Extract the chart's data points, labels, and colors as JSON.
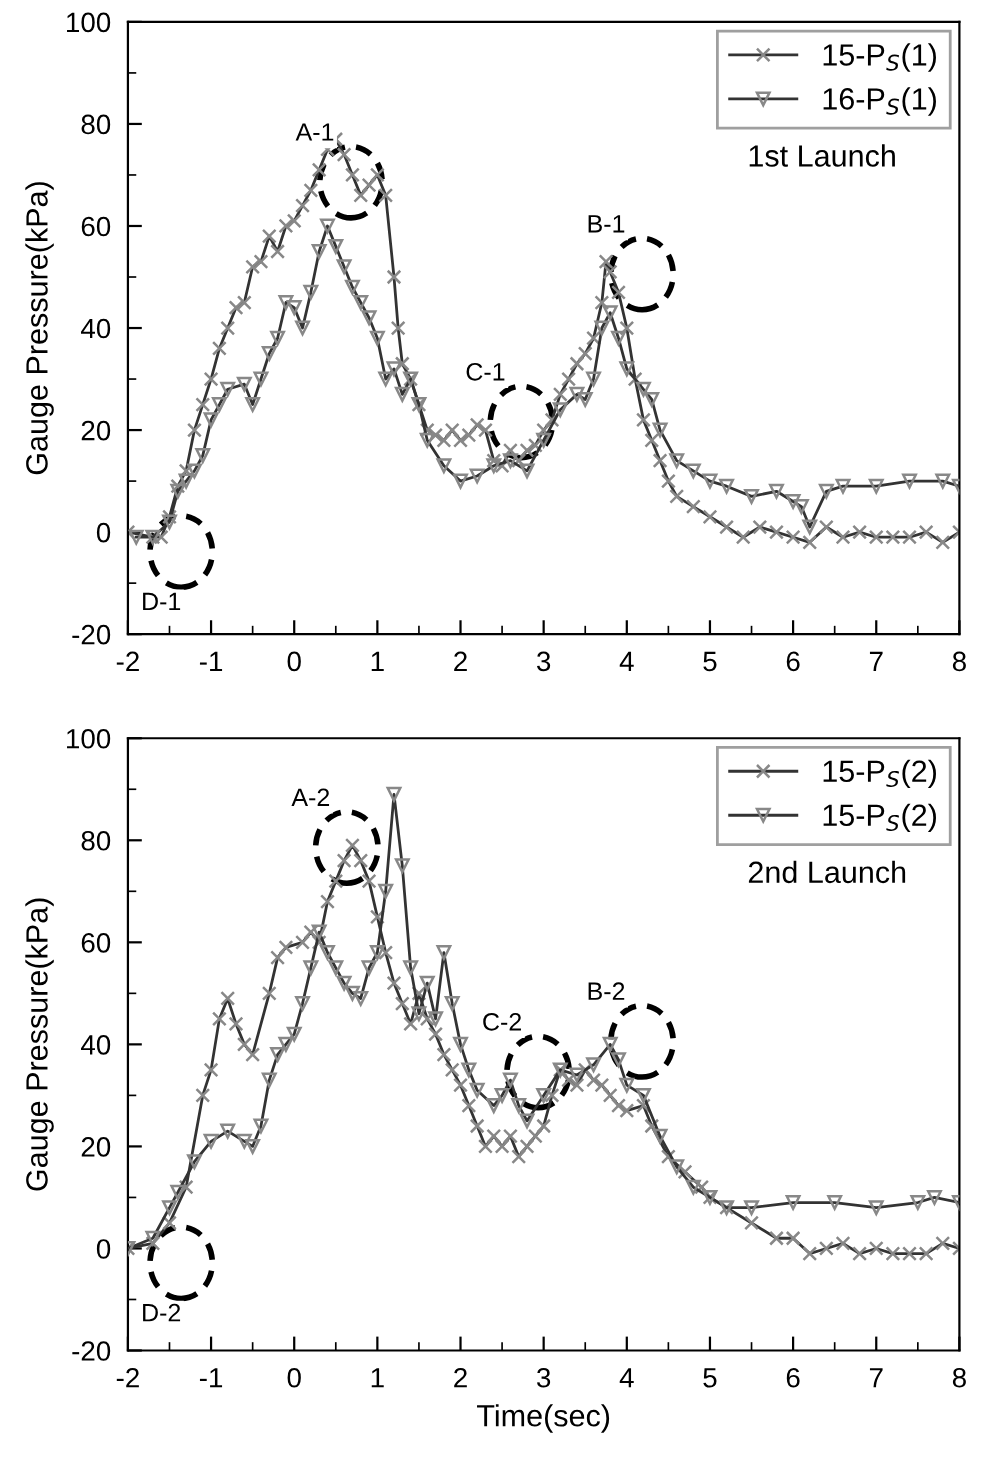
{
  "chart_data": [
    {
      "type": "line",
      "ylabel": "Gauge Pressure(kPa)",
      "xlim": [
        -2,
        8
      ],
      "xticks": [
        -2,
        -1,
        0,
        1,
        2,
        3,
        4,
        5,
        6,
        7,
        8
      ],
      "ylim": [
        -20,
        100
      ],
      "yticks": [
        -20,
        0,
        20,
        40,
        60,
        80,
        100
      ],
      "legend": "top right",
      "grid": false,
      "annotations": [
        "1st Launch",
        {
          "text": "A-1",
          "x": 0.25,
          "y": 78
        },
        {
          "text": "B-1",
          "x": 3.75,
          "y": 60
        },
        {
          "text": "C-1",
          "x": 2.3,
          "y": 31
        },
        {
          "text": "D-1",
          "x": -1.6,
          "y": -14
        }
      ],
      "series": [
        {
          "name": "15-P$_{S}$(1)",
          "color": "#333333",
          "marker": "cross",
          "x": [
            -2,
            -1.7,
            -1.6,
            -1.5,
            -1.4,
            -1.3,
            -1.2,
            -1.1,
            -1,
            -0.9,
            -0.8,
            -0.7,
            -0.6,
            -0.5,
            -0.4,
            -0.3,
            -0.2,
            -0.1,
            0,
            0.1,
            0.2,
            0.3,
            0.4,
            0.5,
            0.6,
            0.7,
            0.8,
            0.9,
            1.0,
            1.1,
            1.2,
            1.25,
            1.3,
            1.4,
            1.5,
            1.6,
            1.7,
            1.8,
            1.9,
            2.0,
            2.1,
            2.2,
            2.3,
            2.4,
            2.5,
            2.6,
            2.7,
            2.8,
            2.9,
            3.0,
            3.1,
            3.2,
            3.3,
            3.4,
            3.5,
            3.6,
            3.7,
            3.75,
            3.8,
            3.9,
            4.0,
            4.1,
            4.2,
            4.3,
            4.4,
            4.5,
            4.6,
            4.8,
            5.0,
            5.2,
            5.4,
            5.6,
            5.8,
            6.0,
            6.2,
            6.4,
            6.6,
            6.8,
            7.0,
            7.2,
            7.4,
            7.6,
            7.8,
            8.0
          ],
          "values": [
            0,
            -1,
            -1,
            3,
            9,
            12,
            20,
            25,
            30,
            36,
            40,
            44,
            45,
            52,
            53,
            58,
            55,
            60,
            61,
            64,
            67,
            71,
            75,
            77,
            74,
            70,
            66,
            68,
            70,
            66,
            50,
            40,
            33,
            30,
            25,
            20,
            19,
            18,
            20,
            18,
            19,
            21,
            20,
            14,
            13,
            16,
            14,
            16,
            17,
            20,
            22,
            27,
            30,
            33,
            35,
            38,
            45,
            53,
            51,
            47,
            40,
            30,
            22,
            18,
            14,
            10,
            7,
            5,
            3,
            1,
            -1,
            1,
            0,
            -1,
            -2,
            1,
            -1,
            0,
            -1,
            -1,
            -1,
            0,
            -2,
            0
          ]
        },
        {
          "name": "16-P$_{S}$(1)",
          "color": "#333333",
          "marker": "triangle",
          "x": [
            -1.9,
            -1.7,
            -1.5,
            -1.4,
            -1.3,
            -1.2,
            -1.1,
            -1,
            -0.9,
            -0.8,
            -0.6,
            -0.5,
            -0.4,
            -0.3,
            -0.2,
            -0.1,
            0,
            0.1,
            0.2,
            0.3,
            0.4,
            0.5,
            0.6,
            0.7,
            0.8,
            0.9,
            1.0,
            1.1,
            1.2,
            1.3,
            1.4,
            1.5,
            1.6,
            1.8,
            2.0,
            2.2,
            2.4,
            2.6,
            2.8,
            3.0,
            3.2,
            3.4,
            3.5,
            3.6,
            3.7,
            3.8,
            3.9,
            4.0,
            4.2,
            4.3,
            4.4,
            4.6,
            4.8,
            5.0,
            5.2,
            5.5,
            5.8,
            6.0,
            6.1,
            6.2,
            6.4,
            6.6,
            7.0,
            7.4,
            7.8,
            8.0
          ],
          "values": [
            -1,
            -1,
            2,
            8,
            10,
            12,
            15,
            22,
            25,
            28,
            29,
            25,
            30,
            35,
            38,
            45,
            44,
            40,
            47,
            55,
            60,
            56,
            52,
            48,
            45,
            42,
            38,
            30,
            32,
            27,
            30,
            25,
            18,
            13,
            10,
            11,
            13,
            14,
            12,
            18,
            24,
            27,
            26,
            30,
            40,
            43,
            38,
            32,
            28,
            26,
            20,
            14,
            12,
            10,
            9,
            7,
            8,
            6,
            5,
            1,
            8,
            9,
            9,
            10,
            10,
            9
          ]
        }
      ]
    },
    {
      "type": "line",
      "xlabel": "Time(sec)",
      "ylabel": "Gauge Pressure(kPa)",
      "xlim": [
        -2,
        8
      ],
      "xticks": [
        -2,
        -1,
        0,
        1,
        2,
        3,
        4,
        5,
        6,
        7,
        8
      ],
      "ylim": [
        -20,
        100
      ],
      "yticks": [
        -20,
        0,
        20,
        40,
        60,
        80,
        100
      ],
      "legend": "top right",
      "grid": false,
      "annotations": [
        "2nd Launch",
        {
          "text": "A-2",
          "x": 0.2,
          "y": 88
        },
        {
          "text": "B-2",
          "x": 3.75,
          "y": 50
        },
        {
          "text": "C-2",
          "x": 2.5,
          "y": 44
        },
        {
          "text": "D-2",
          "x": -1.6,
          "y": -13
        }
      ],
      "series": [
        {
          "name": "15-P$_{S}$(2)",
          "color": "#333333",
          "marker": "cross",
          "x": [
            -2,
            -1.7,
            -1.5,
            -1.3,
            -1.1,
            -1.0,
            -0.9,
            -0.8,
            -0.7,
            -0.6,
            -0.5,
            -0.3,
            -0.2,
            -0.1,
            0.1,
            0.2,
            0.3,
            0.4,
            0.5,
            0.6,
            0.7,
            0.8,
            0.9,
            1.0,
            1.1,
            1.2,
            1.3,
            1.4,
            1.5,
            1.6,
            1.7,
            1.8,
            1.9,
            2.0,
            2.1,
            2.2,
            2.3,
            2.4,
            2.5,
            2.6,
            2.7,
            2.8,
            2.9,
            3.0,
            3.1,
            3.2,
            3.3,
            3.4,
            3.5,
            3.6,
            3.7,
            3.8,
            3.9,
            4.0,
            4.2,
            4.3,
            4.5,
            4.7,
            4.9,
            5.0,
            5.2,
            5.5,
            5.8,
            6.0,
            6.2,
            6.4,
            6.6,
            6.8,
            7.0,
            7.2,
            7.4,
            7.6,
            7.8,
            8.0
          ],
          "values": [
            0,
            1,
            5,
            12,
            30,
            35,
            45,
            49,
            44,
            40,
            38,
            50,
            57,
            59,
            60,
            62,
            60,
            68,
            72,
            76,
            79,
            76,
            72,
            65,
            58,
            52,
            48,
            44,
            50,
            45,
            42,
            38,
            35,
            32,
            28,
            24,
            20,
            22,
            20,
            22,
            18,
            20,
            22,
            24,
            30,
            35,
            33,
            32,
            35,
            33,
            32,
            30,
            28,
            27,
            28,
            24,
            18,
            15,
            12,
            10,
            8,
            5,
            2,
            2,
            -1,
            0,
            1,
            -1,
            0,
            -1,
            -1,
            -1,
            1,
            0
          ]
        },
        {
          "name": "15-P$_{S}$(2)",
          "color": "#333333",
          "marker": "triangle",
          "x": [
            -2,
            -1.7,
            -1.5,
            -1.4,
            -1.2,
            -1.0,
            -0.8,
            -0.6,
            -0.5,
            -0.4,
            -0.3,
            -0.2,
            -0.1,
            0,
            0.1,
            0.2,
            0.3,
            0.4,
            0.5,
            0.6,
            0.7,
            0.8,
            0.9,
            1.0,
            1.1,
            1.2,
            1.3,
            1.4,
            1.5,
            1.6,
            1.7,
            1.8,
            1.9,
            2.0,
            2.1,
            2.2,
            2.4,
            2.5,
            2.6,
            2.7,
            2.8,
            3.0,
            3.2,
            3.4,
            3.6,
            3.8,
            3.9,
            4.0,
            4.2,
            4.4,
            4.6,
            4.8,
            5.0,
            5.2,
            5.5,
            6.0,
            6.5,
            7.0,
            7.5,
            7.7,
            8.0
          ],
          "values": [
            0,
            2,
            8,
            11,
            17,
            21,
            23,
            21,
            20,
            24,
            33,
            38,
            40,
            42,
            48,
            55,
            62,
            58,
            55,
            52,
            50,
            49,
            55,
            58,
            70,
            89,
            75,
            55,
            46,
            52,
            45,
            58,
            48,
            40,
            35,
            31,
            28,
            30,
            33,
            28,
            25,
            30,
            35,
            34,
            36,
            40,
            37,
            32,
            30,
            22,
            16,
            12,
            10,
            8,
            8,
            9,
            9,
            8,
            9,
            10,
            9
          ]
        }
      ]
    }
  ]
}
